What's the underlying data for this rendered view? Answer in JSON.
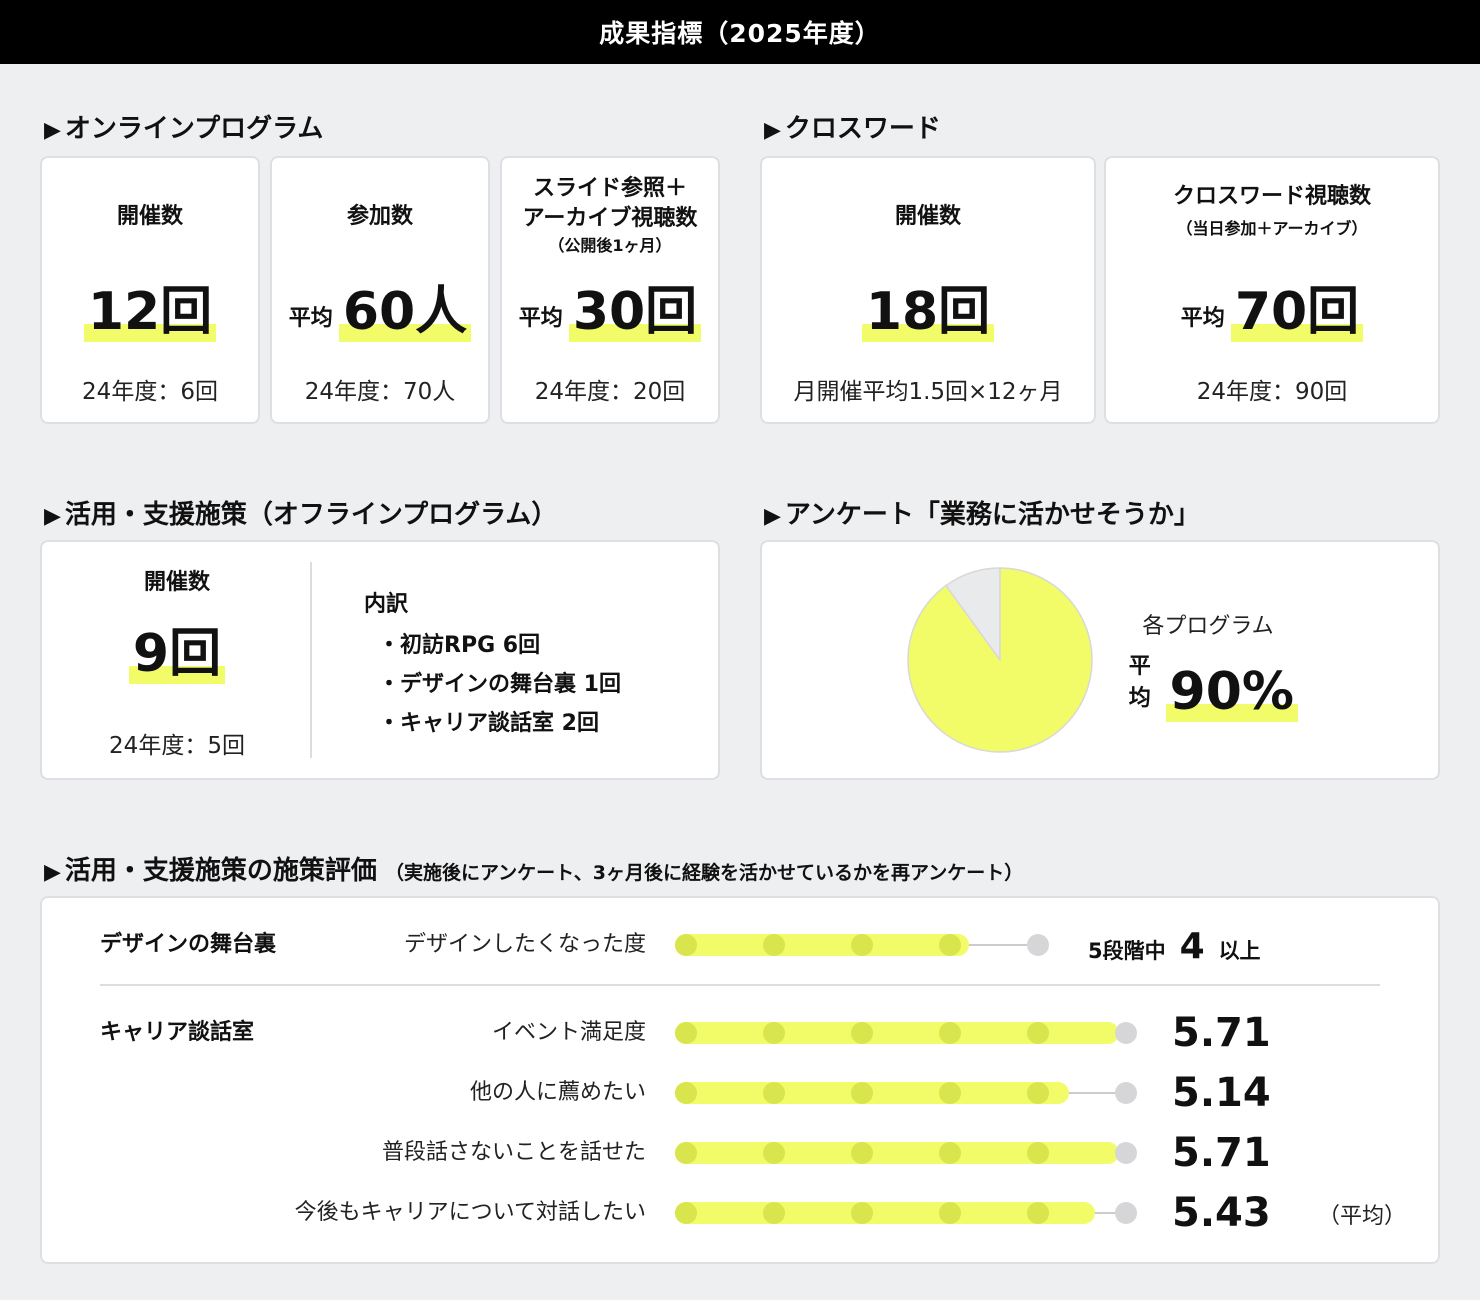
{
  "header": {
    "title": "成果指標（2025年度）"
  },
  "online": {
    "title": "オンラインプログラム",
    "cards": [
      {
        "label": "開催数",
        "label2": "",
        "small": "",
        "prefix": "",
        "value": "12回",
        "prev": "24年度：6回"
      },
      {
        "label": "参加数",
        "label2": "",
        "small": "",
        "prefix": "平均",
        "value": "60人",
        "prev": "24年度：70人"
      },
      {
        "label": "スライド参照＋",
        "label2": "アーカイブ視聴数",
        "small": "（公開後1ヶ月）",
        "prefix": "平均",
        "value": "30回",
        "prev": "24年度：20回"
      }
    ]
  },
  "crossword": {
    "title": "クロスワード",
    "cards": [
      {
        "label": "開催数",
        "small": "",
        "prefix": "",
        "value": "18回",
        "prev": "月開催平均1.5回×12ヶ月"
      },
      {
        "label": "クロスワード視聴数",
        "small": "（当日参加＋アーカイブ）",
        "prefix": "平均",
        "value": "70回",
        "prev": "24年度：90回"
      }
    ]
  },
  "offline": {
    "title": "活用・支援施策（オフラインプログラム）",
    "label": "開催数",
    "value": "9回",
    "prev": "24年度：5回",
    "breakdown_title": "内訳",
    "bullet": "・",
    "items": [
      "初訪RPG 6回",
      "デザインの舞台裏 1回",
      "キャリア談話室 2回"
    ]
  },
  "survey": {
    "title": "アンケート「業務に活かせそうか」",
    "label": "各プログラム",
    "prefix": "平均",
    "value": "90%",
    "percent": 90,
    "colors": {
      "fill": "#f2fc68",
      "rest": "#e9eaec",
      "stroke": "#d8d8d8"
    }
  },
  "evaluation": {
    "title": "活用・支援施策の施策評価",
    "subtitle": "（実施後にアンケート、3ヶ月後に経験を活かせているかを再アンケート）",
    "design": {
      "program": "デザインの舞台裏",
      "item": "デザインしたくなった度",
      "scale": 5,
      "level": 4,
      "score_pre": "5段階中",
      "score": "4",
      "score_post": "以上"
    },
    "career": {
      "program": "キャリア談話室",
      "scale": 6,
      "rows": [
        {
          "item": "イベント満足度",
          "score": "5.71",
          "value": 5.71
        },
        {
          "item": "他の人に薦めたい",
          "score": "5.14",
          "value": 5.14
        },
        {
          "item": "普段話さないことを話せた",
          "score": "5.71",
          "value": 5.71
        },
        {
          "item": "今後もキャリアについて対話したい",
          "score": "5.43",
          "value": 5.43
        }
      ],
      "note": "（平均）"
    },
    "colors": {
      "fill": "#f2fc68",
      "node_on": "#d9e54c",
      "node_off": "#d6d6d8"
    }
  }
}
